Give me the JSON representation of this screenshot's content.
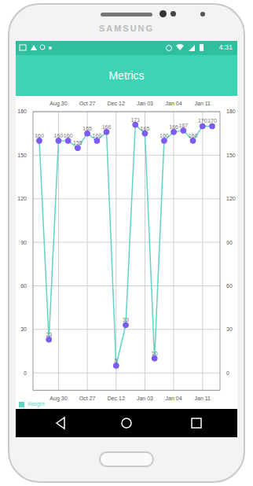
{
  "device": {
    "brand": "SAMSUNG"
  },
  "status_bar": {
    "time": "4:31"
  },
  "app_bar": {
    "title": "Metrics"
  },
  "chart_data": {
    "type": "line",
    "categories": [
      null,
      null,
      "Aug 30",
      null,
      null,
      "Oct 27",
      null,
      null,
      "Dec 12",
      null,
      null,
      "Jan 03",
      null,
      null,
      "Jan 04",
      null,
      null,
      "Jan 11",
      null
    ],
    "series": [
      {
        "name": "Weight",
        "color": "#5fd6c2",
        "values": [
          160,
          23,
          160,
          160,
          155,
          165,
          160,
          166,
          5,
          33,
          171,
          165,
          10,
          160,
          166,
          167,
          160,
          170,
          170
        ]
      }
    ],
    "ylim": [
      -12,
      180
    ],
    "yticks": [
      0,
      30,
      60,
      90,
      120,
      150,
      180
    ],
    "grid": true,
    "legend": "bottom left",
    "data_labels": true,
    "marker": "circle"
  }
}
